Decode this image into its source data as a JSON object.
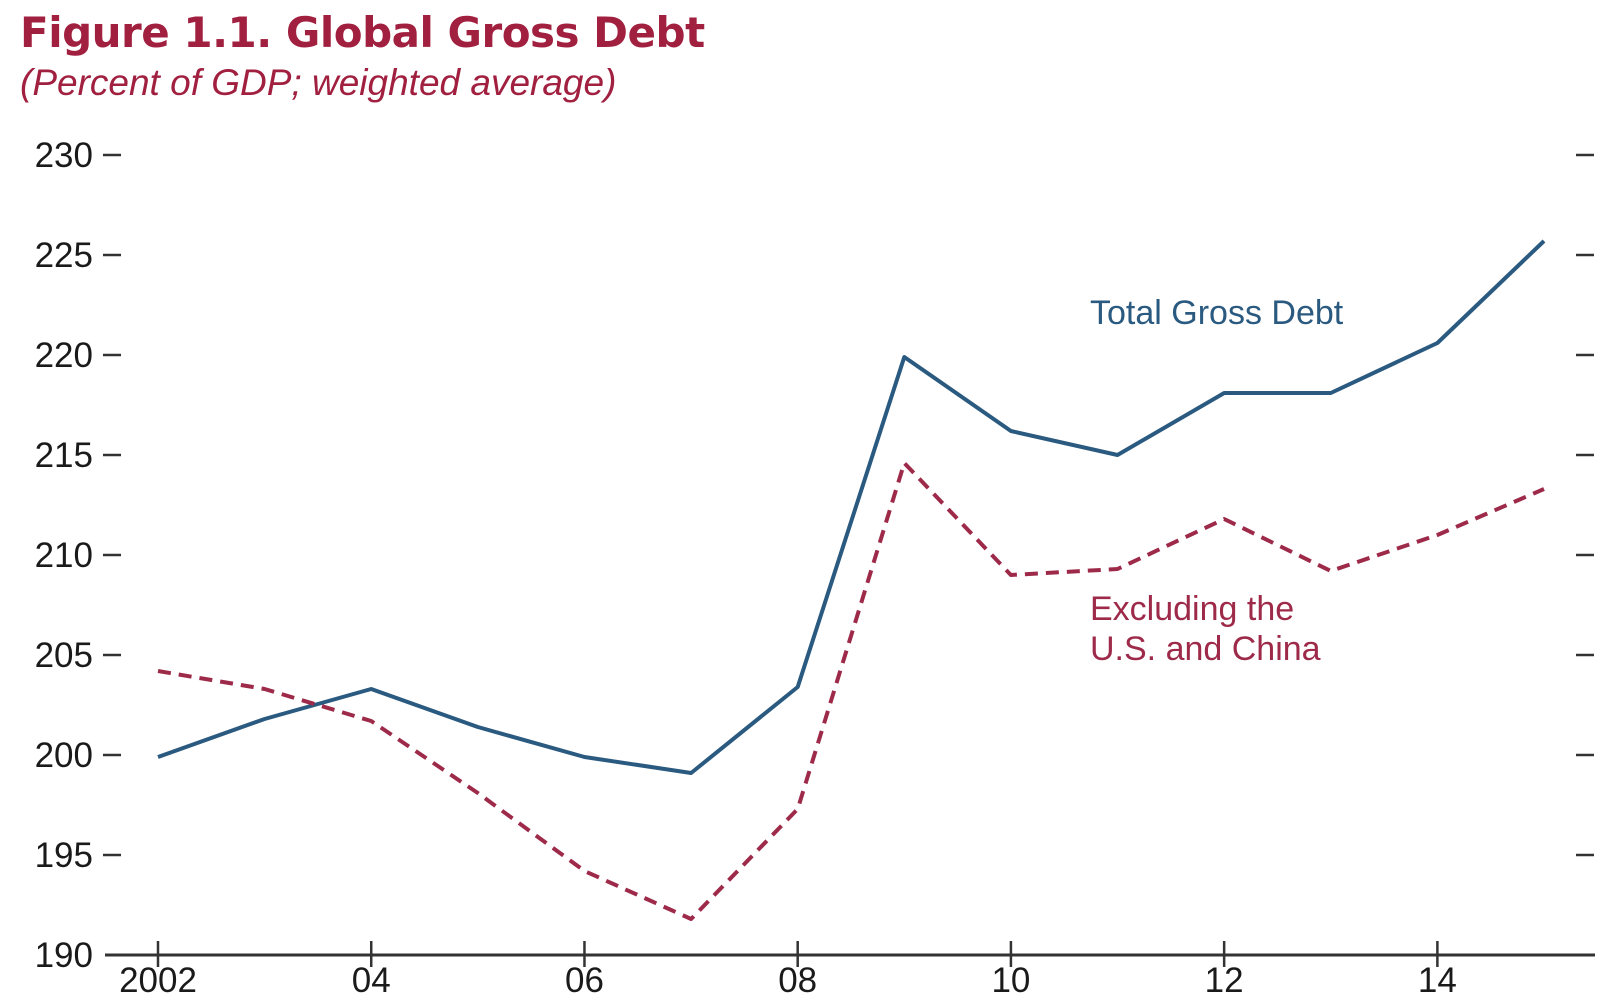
{
  "title": "Figure 1.1. Global Gross Debt",
  "subtitle": "(Percent of GDP; weighted average)",
  "chart_data": {
    "type": "line",
    "x": [
      2002,
      2003,
      2004,
      2005,
      2006,
      2007,
      2008,
      2009,
      2010,
      2011,
      2012,
      2013,
      2014,
      2015
    ],
    "x_tick_values": [
      2002,
      2004,
      2006,
      2008,
      2010,
      2012,
      2014
    ],
    "x_tick_labels": [
      "2002",
      "04",
      "06",
      "08",
      "10",
      "12",
      "14"
    ],
    "y_ticks": [
      190,
      195,
      200,
      205,
      210,
      215,
      220,
      225,
      230
    ],
    "ylim": [
      190,
      230
    ],
    "xlim": [
      2002,
      2015
    ],
    "grid": false,
    "series": [
      {
        "name": "Total Gross Debt",
        "color": "#2b5a80",
        "style": "solid",
        "values": [
          199.9,
          201.8,
          203.3,
          201.4,
          199.9,
          199.1,
          203.4,
          219.9,
          216.2,
          215.0,
          218.1,
          218.1,
          220.6,
          225.7
        ]
      },
      {
        "name": "Excluding the U.S. and China",
        "name_lines": [
          "Excluding the",
          "U.S. and China"
        ],
        "color": "#9e2a4a",
        "style": "dashed",
        "values": [
          204.2,
          203.3,
          201.7,
          198.1,
          194.2,
          191.8,
          197.3,
          214.6,
          209.0,
          209.3,
          211.8,
          209.2,
          211.0,
          213.3
        ]
      }
    ]
  }
}
